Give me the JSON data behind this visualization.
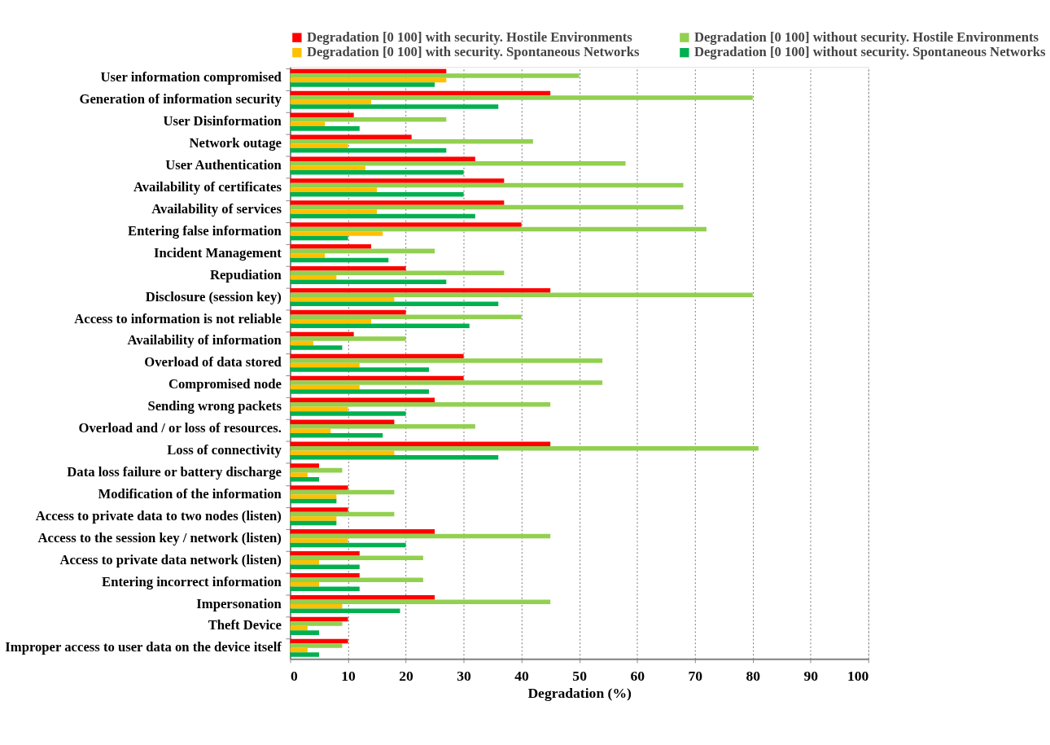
{
  "chart_data": {
    "type": "bar",
    "orientation": "horizontal",
    "xlabel": "Degradation (%)",
    "categories": [
      "User information compromised",
      "Generation of information security",
      "User Disinformation",
      "Network outage",
      "User Authentication",
      "Availability of certificates",
      "Availability of services",
      "Entering false information",
      "Incident Management",
      "Repudiation",
      "Disclosure (session key)",
      "Access to information is not reliable",
      "Availability of information",
      "Overload of data stored",
      "Compromised node",
      "Sending wrong packets",
      "Overload and / or loss of resources.",
      "Loss of connectivity",
      "Data loss failure or battery discharge",
      "Modification of the information",
      "Access to private data to two nodes (listen)",
      "Access to the session key / network (listen)",
      "Access to private data network (listen)",
      "Entering incorrect information",
      "Impersonation",
      "Theft Device",
      "Improper access to user data on the device itself"
    ],
    "series": [
      {
        "name": "Degradation [0 100] with security. Hostile Environments",
        "color": "#ff0000",
        "values": [
          27,
          45,
          11,
          21,
          32,
          37,
          37,
          40,
          14,
          20,
          45,
          20,
          11,
          30,
          30,
          25,
          18,
          45,
          5,
          10,
          10,
          25,
          12,
          12,
          25,
          10,
          10
        ]
      },
      {
        "name": "Degradation [0 100] without security. Hostile Environments",
        "color": "#92d050",
        "values": [
          50,
          80,
          27,
          42,
          58,
          68,
          68,
          72,
          25,
          37,
          80,
          40,
          20,
          54,
          54,
          45,
          32,
          81,
          9,
          18,
          18,
          45,
          23,
          23,
          45,
          9,
          9
        ]
      },
      {
        "name": "Degradation [0 100] with security. Spontaneous Networks",
        "color": "#ffc000",
        "values": [
          27,
          14,
          6,
          10,
          13,
          15,
          15,
          16,
          6,
          8,
          18,
          14,
          4,
          12,
          12,
          10,
          7,
          18,
          3,
          8,
          8,
          10,
          5,
          5,
          9,
          3,
          3
        ]
      },
      {
        "name": "Degradation [0 100] without security. Spontaneous Networks",
        "color": "#00b050",
        "values": [
          25,
          36,
          12,
          27,
          30,
          30,
          32,
          10,
          17,
          27,
          36,
          31,
          9,
          24,
          24,
          20,
          16,
          36,
          5,
          8,
          8,
          20,
          12,
          12,
          19,
          5,
          5
        ]
      }
    ],
    "xlim": [
      0,
      100
    ],
    "xticks": [
      0,
      10,
      20,
      30,
      40,
      50,
      60,
      70,
      80,
      90,
      100
    ],
    "grid": "x",
    "legend": "top"
  }
}
